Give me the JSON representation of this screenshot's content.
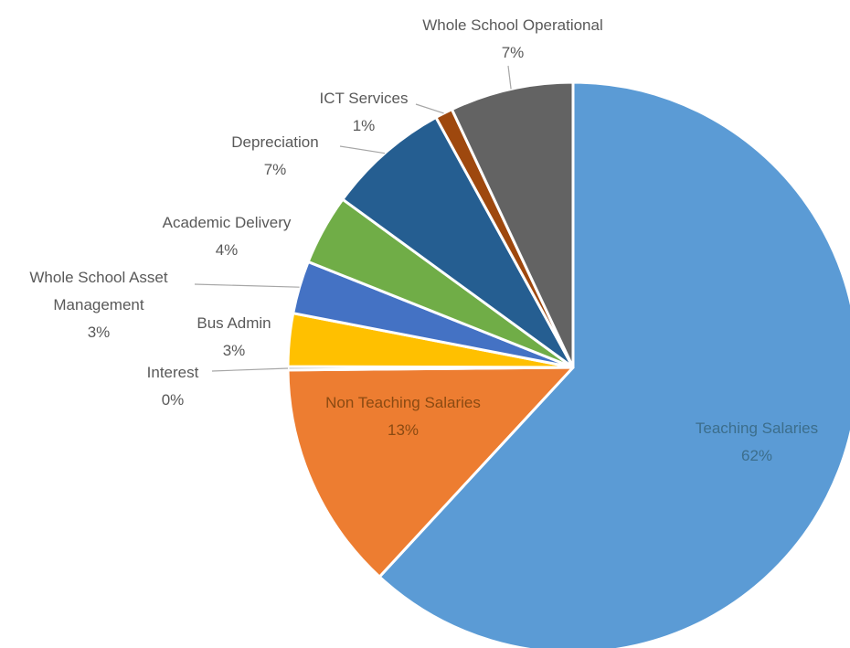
{
  "chart_data": {
    "type": "pie",
    "title": "",
    "start_angle_deg": 0,
    "direction": "clockwise",
    "slices": [
      {
        "key": "teaching",
        "label": "Teaching Salaries",
        "value": 62,
        "percent_label": "62%",
        "color": "#5b9bd5"
      },
      {
        "key": "non_teaching",
        "label": "Non Teaching Salaries",
        "value": 13,
        "percent_label": "13%",
        "color": "#ed7d31"
      },
      {
        "key": "interest",
        "label": "Interest",
        "value": 0.2,
        "percent_label": "0%",
        "color": "#a5a5a5"
      },
      {
        "key": "bus_admin",
        "label": "Bus Admin",
        "value": 3,
        "percent_label": "3%",
        "color": "#ffc000"
      },
      {
        "key": "asset_mgmt",
        "label": "Whole School Asset Management",
        "label_line1": "Whole School Asset",
        "label_line2": "Management",
        "value": 3,
        "percent_label": "3%",
        "color": "#4472c4"
      },
      {
        "key": "academic",
        "label": "Academic Delivery",
        "value": 4,
        "percent_label": "4%",
        "color": "#70ad47"
      },
      {
        "key": "depreciation",
        "label": "Depreciation",
        "value": 7,
        "percent_label": "7%",
        "color": "#255e91"
      },
      {
        "key": "ict",
        "label": "ICT Services",
        "value": 1,
        "percent_label": "1%",
        "color": "#9e480e"
      },
      {
        "key": "operational",
        "label": "Whole School Operational",
        "value": 7,
        "percent_label": "7%",
        "color": "#636363"
      }
    ]
  }
}
